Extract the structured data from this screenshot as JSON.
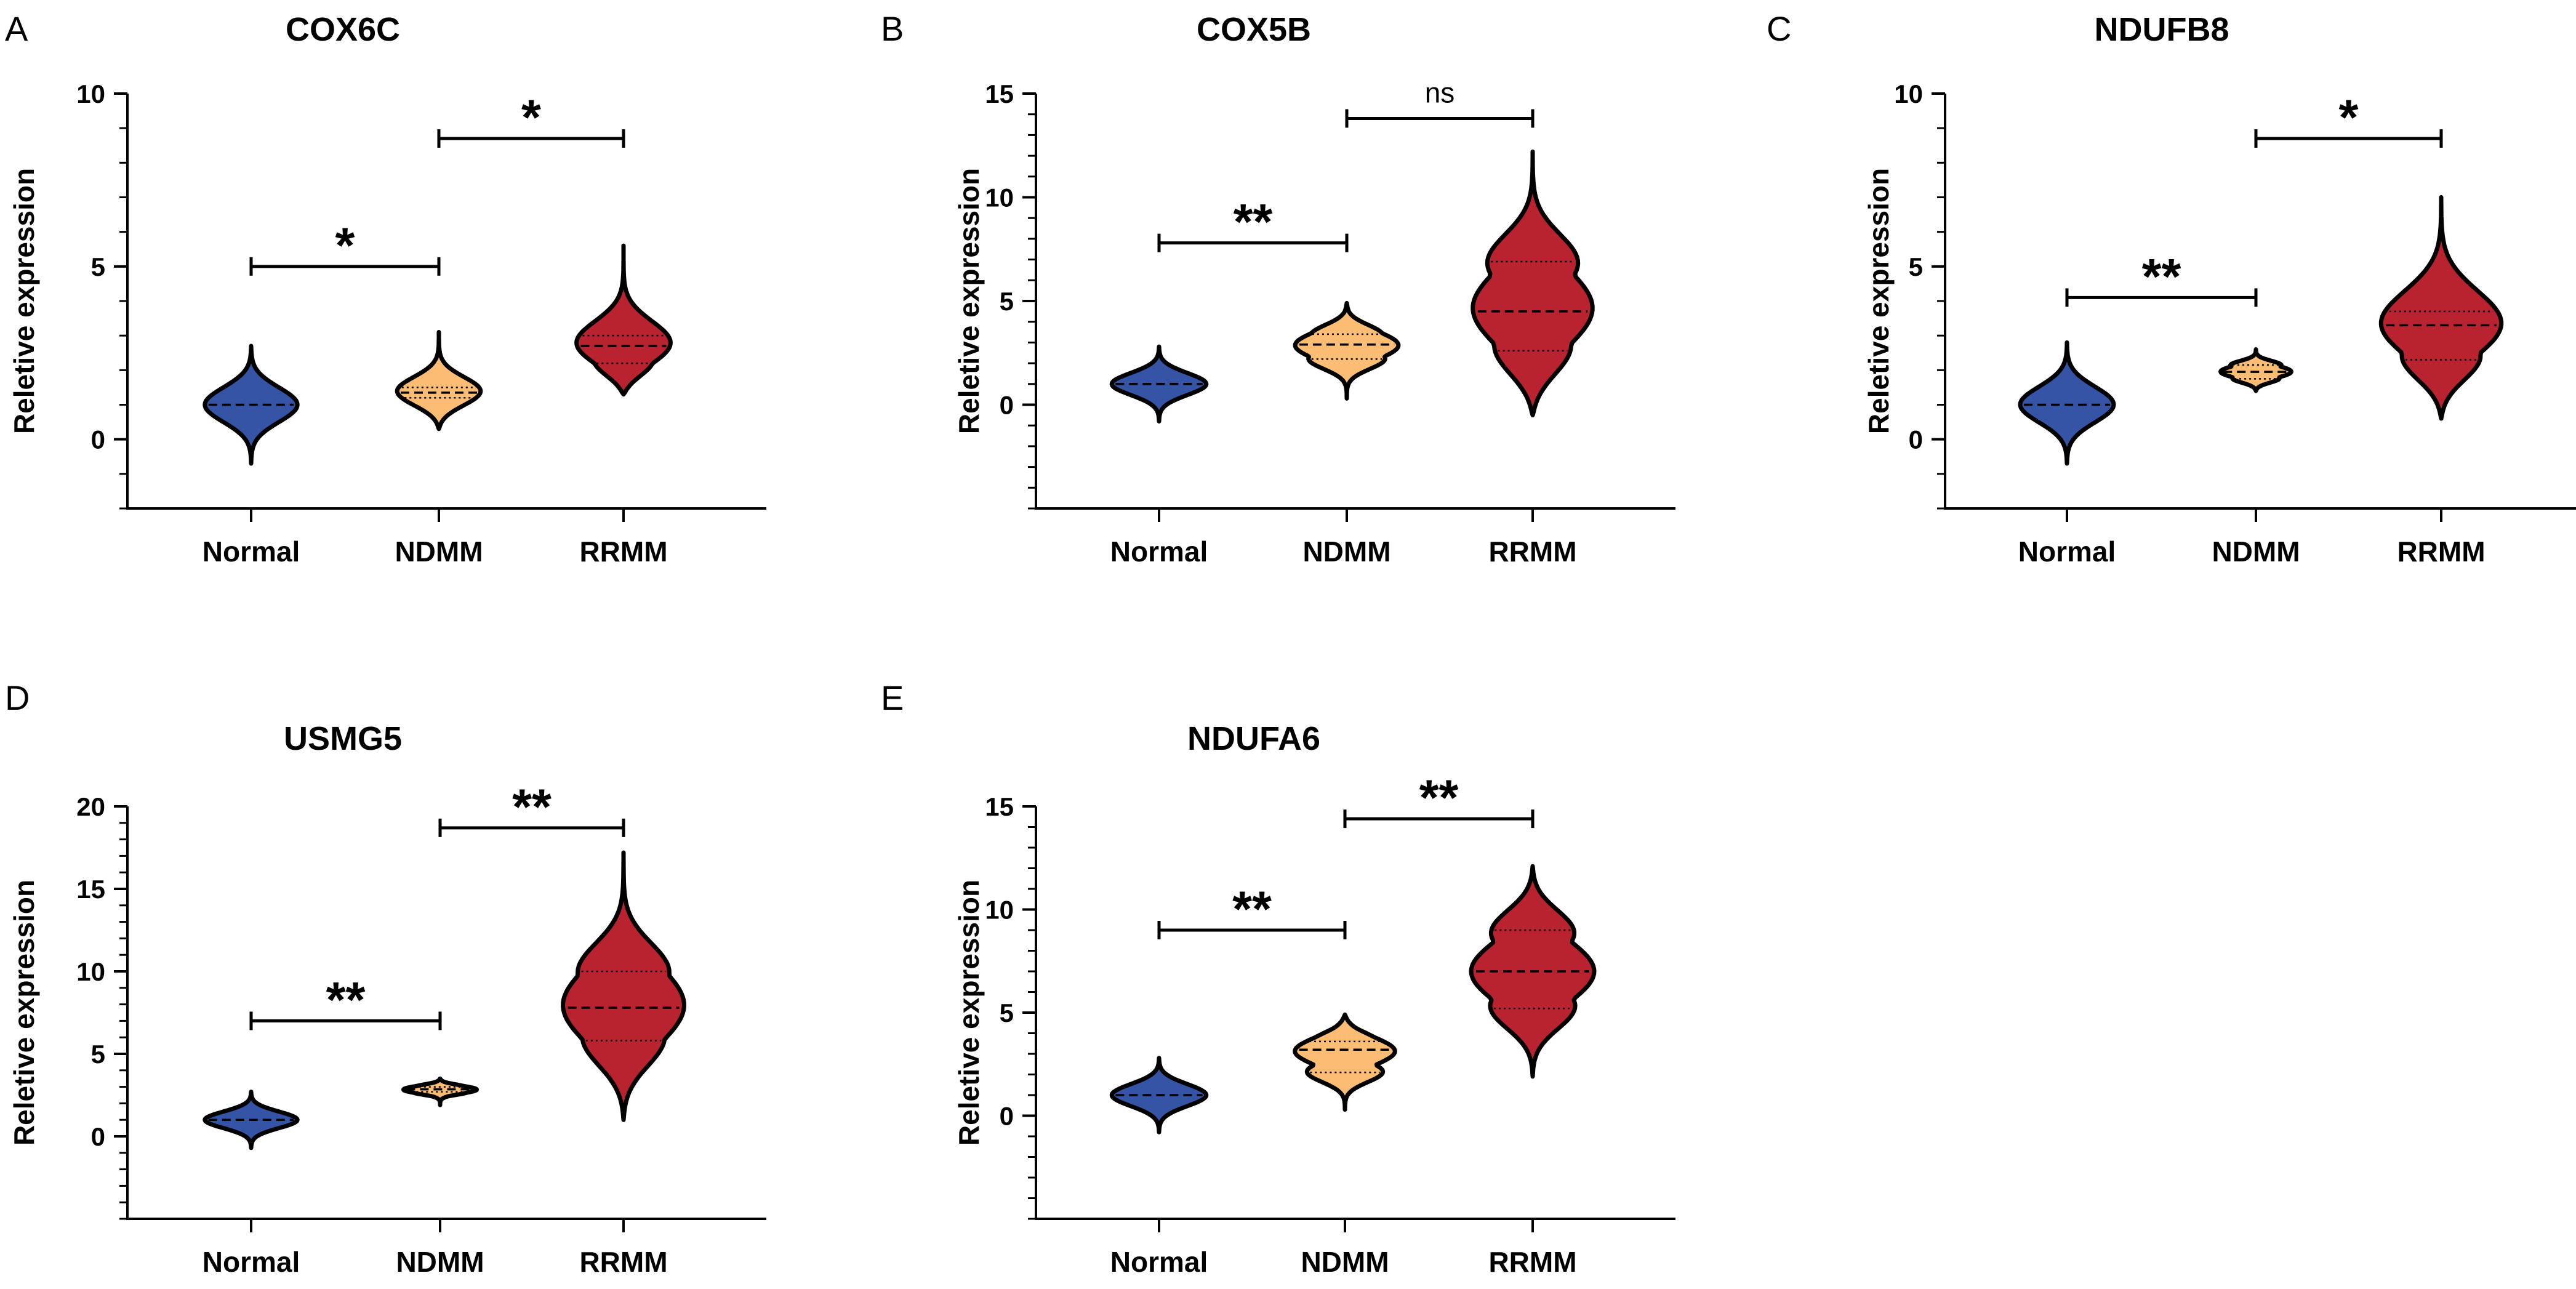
{
  "figure": {
    "categories": [
      "Normal",
      "NDMM",
      "RRMM"
    ],
    "colors": {
      "Normal": "#3654a5",
      "NDMM": "#fbbd74",
      "RRMM": "#b8232f"
    }
  },
  "chart_data": [
    {
      "panel": "A",
      "type": "violin",
      "title": "COX6C",
      "ylabel": "Reletive expression",
      "categories": [
        "Normal",
        "NDMM",
        "RRMM"
      ],
      "ylim": [
        -2,
        10
      ],
      "yticks": [
        0,
        5,
        10
      ],
      "series": [
        {
          "name": "Normal",
          "min": -0.7,
          "max": 2.7,
          "q1": 1.0,
          "median": 1.0,
          "q3": 1.0
        },
        {
          "name": "NDMM",
          "min": 0.3,
          "max": 3.1,
          "q1": 1.2,
          "median": 1.35,
          "q3": 1.5
        },
        {
          "name": "RRMM",
          "min": 1.3,
          "max": 5.6,
          "q1": 2.2,
          "median": 2.7,
          "q3": 3.0
        }
      ],
      "comparisons": [
        {
          "from": "Normal",
          "to": "NDMM",
          "y": 5.0,
          "label": "*"
        },
        {
          "from": "NDMM",
          "to": "RRMM",
          "y": 8.7,
          "label": "*"
        }
      ]
    },
    {
      "panel": "B",
      "type": "violin",
      "title": "COX5B",
      "ylabel": "Reletive expression",
      "categories": [
        "Normal",
        "NDMM",
        "RRMM"
      ],
      "ylim": [
        -5,
        15
      ],
      "yticks": [
        0,
        5,
        10,
        15
      ],
      "series": [
        {
          "name": "Normal",
          "min": -0.8,
          "max": 2.8,
          "q1": 1.0,
          "median": 1.0,
          "q3": 1.0
        },
        {
          "name": "NDMM",
          "min": 0.3,
          "max": 4.9,
          "q1": 2.2,
          "median": 2.9,
          "q3": 3.4
        },
        {
          "name": "RRMM",
          "min": -0.5,
          "max": 12.2,
          "q1": 2.6,
          "median": 4.5,
          "q3": 6.9
        }
      ],
      "comparisons": [
        {
          "from": "Normal",
          "to": "NDMM",
          "y": 7.8,
          "label": "**"
        },
        {
          "from": "NDMM",
          "to": "RRMM",
          "y": 13.8,
          "label": "ns"
        }
      ]
    },
    {
      "panel": "C",
      "type": "violin",
      "title": "NDUFB8",
      "ylabel": "Reletive expression",
      "categories": [
        "Normal",
        "NDMM",
        "RRMM"
      ],
      "ylim": [
        -2,
        10
      ],
      "yticks": [
        0,
        5,
        10
      ],
      "series": [
        {
          "name": "Normal",
          "min": -0.7,
          "max": 2.8,
          "q1": 1.0,
          "median": 1.0,
          "q3": 1.0
        },
        {
          "name": "NDMM",
          "min": 1.4,
          "max": 2.6,
          "q1": 1.75,
          "median": 1.95,
          "q3": 2.15
        },
        {
          "name": "RRMM",
          "min": 0.6,
          "max": 7.0,
          "q1": 2.3,
          "median": 3.3,
          "q3": 3.7
        }
      ],
      "comparisons": [
        {
          "from": "Normal",
          "to": "NDMM",
          "y": 4.1,
          "label": "**"
        },
        {
          "from": "NDMM",
          "to": "RRMM",
          "y": 8.7,
          "label": "*"
        }
      ]
    },
    {
      "panel": "D",
      "type": "violin",
      "title": "USMG5",
      "ylabel": "Reletive expression",
      "categories": [
        "Normal",
        "NDMM",
        "RRMM"
      ],
      "ylim": [
        -5,
        20
      ],
      "yticks": [
        0,
        5,
        10,
        15,
        20
      ],
      "series": [
        {
          "name": "Normal",
          "min": -0.7,
          "max": 2.7,
          "q1": 1.0,
          "median": 1.0,
          "q3": 1.0
        },
        {
          "name": "NDMM",
          "min": 1.9,
          "max": 3.5,
          "q1": 2.7,
          "median": 2.85,
          "q3": 3.0
        },
        {
          "name": "RRMM",
          "min": 1.0,
          "max": 17.2,
          "q1": 5.8,
          "median": 7.8,
          "q3": 10.0
        }
      ],
      "comparisons": [
        {
          "from": "Normal",
          "to": "NDMM",
          "y": 7.0,
          "label": "**"
        },
        {
          "from": "NDMM",
          "to": "RRMM",
          "y": 18.7,
          "label": "**"
        }
      ]
    },
    {
      "panel": "E",
      "type": "violin",
      "title": "NDUFA6",
      "ylabel": "Reletive expression",
      "categories": [
        "Normal",
        "NDMM",
        "RRMM"
      ],
      "ylim": [
        -5,
        15
      ],
      "yticks": [
        0,
        5,
        10,
        15
      ],
      "series": [
        {
          "name": "Normal",
          "min": -0.8,
          "max": 2.8,
          "q1": 1.0,
          "median": 1.0,
          "q3": 1.0
        },
        {
          "name": "NDMM",
          "min": 0.3,
          "max": 4.9,
          "q1": 2.1,
          "median": 3.2,
          "q3": 3.6
        },
        {
          "name": "RRMM",
          "min": 1.9,
          "max": 12.1,
          "q1": 5.2,
          "median": 7.0,
          "q3": 9.0
        }
      ],
      "comparisons": [
        {
          "from": "Normal",
          "to": "NDMM",
          "y": 9.0,
          "label": "**"
        },
        {
          "from": "NDMM",
          "to": "RRMM",
          "y": 14.4,
          "label": "**"
        }
      ]
    }
  ]
}
